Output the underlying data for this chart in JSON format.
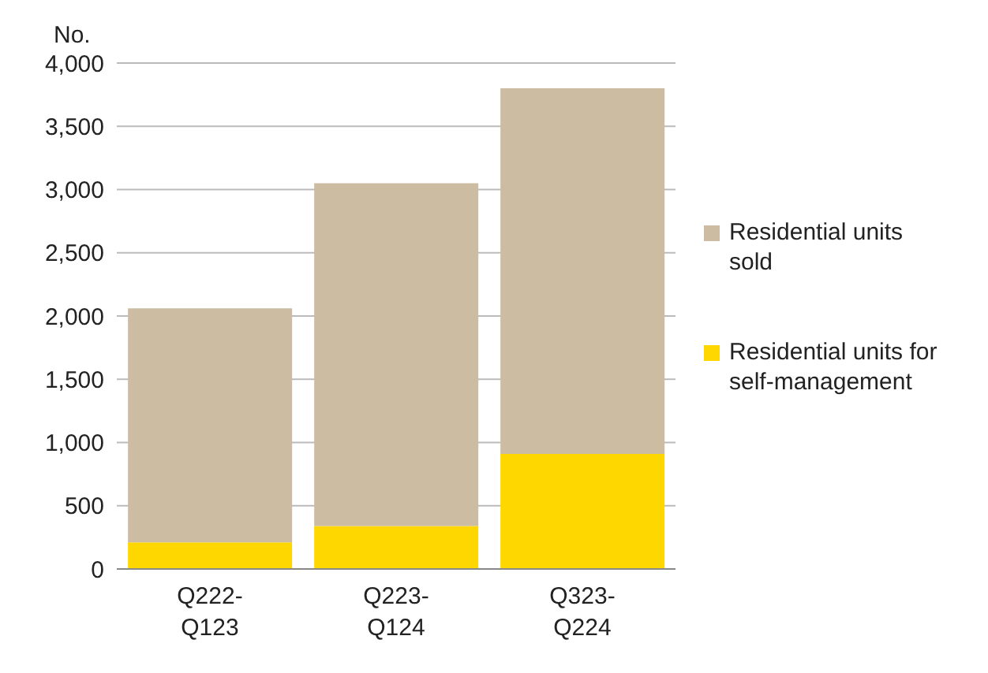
{
  "chart_data": {
    "type": "bar",
    "stacked": true,
    "ylabel": "No.",
    "categories": [
      "Q222-Q123",
      "Q223-Q124",
      "Q323-Q224"
    ],
    "series": [
      {
        "name": "Residential units for self-management",
        "color": "#ffd700",
        "values": [
          210,
          340,
          910
        ]
      },
      {
        "name": "Residential units sold",
        "color": "#cbbca2",
        "values": [
          1850,
          2710,
          2890
        ]
      }
    ],
    "ylim": [
      0,
      4000
    ],
    "yticks": [
      {
        "value": 0,
        "label": "0"
      },
      {
        "value": 500,
        "label": "500"
      },
      {
        "value": 1000,
        "label": "1,000"
      },
      {
        "value": 1500,
        "label": "1,500"
      },
      {
        "value": 2000,
        "label": "2,000"
      },
      {
        "value": 2500,
        "label": "2,500"
      },
      {
        "value": 3000,
        "label": "3,000"
      },
      {
        "value": 3500,
        "label": "3,500"
      },
      {
        "value": 4000,
        "label": "4,000"
      }
    ],
    "grid": "y",
    "legend": "right"
  }
}
